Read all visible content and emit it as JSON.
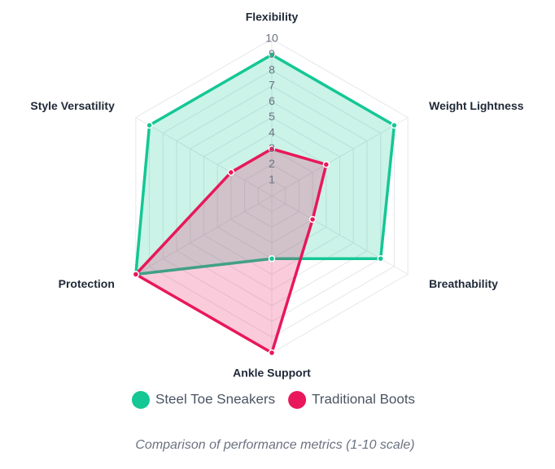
{
  "chart_data": {
    "type": "radar",
    "subtitle": "Comparison of performance metrics (1-10 scale)",
    "categories": [
      "Flexibility",
      "Weight Lightness",
      "Breathability",
      "Ankle Support",
      "Protection",
      "Style Versatility"
    ],
    "rlim": [
      0,
      10
    ],
    "rticks": [
      1,
      2,
      3,
      4,
      5,
      6,
      7,
      8,
      9,
      10
    ],
    "series": [
      {
        "name": "Steel Toe Sneakers",
        "color": "#14c794",
        "values": [
          9,
          9,
          8,
          4,
          10,
          9
        ]
      },
      {
        "name": "Traditional Boots",
        "color": "#e8185a",
        "values": [
          3,
          4,
          3,
          10,
          10,
          3
        ]
      }
    ]
  }
}
